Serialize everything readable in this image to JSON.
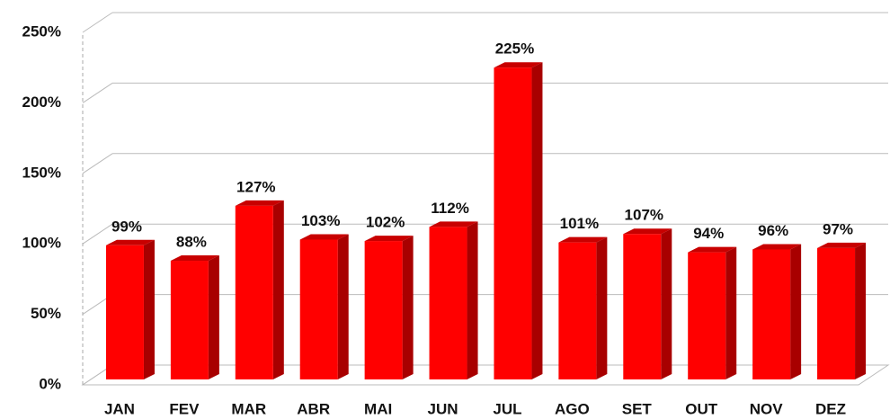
{
  "chart_data": {
    "type": "bar",
    "categories": [
      "JAN",
      "FEV",
      "MAR",
      "ABR",
      "MAI",
      "JUN",
      "JUL",
      "AGO",
      "SET",
      "OUT",
      "NOV",
      "DEZ"
    ],
    "values": [
      99,
      88,
      127,
      103,
      102,
      112,
      225,
      101,
      107,
      94,
      96,
      97
    ],
    "value_labels": [
      "99%",
      "88%",
      "127%",
      "103%",
      "102%",
      "112%",
      "225%",
      "101%",
      "107%",
      "94%",
      "96%",
      "97%"
    ],
    "color": "#ff0000",
    "ylim": [
      0,
      250
    ],
    "yticks": [
      {
        "value": 0,
        "label": "0%"
      },
      {
        "value": 50,
        "label": "50%"
      },
      {
        "value": 100,
        "label": "100%"
      },
      {
        "value": 150,
        "label": "150%"
      },
      {
        "value": 200,
        "label": "200%"
      },
      {
        "value": 250,
        "label": "250%"
      }
    ],
    "grid": true
  }
}
